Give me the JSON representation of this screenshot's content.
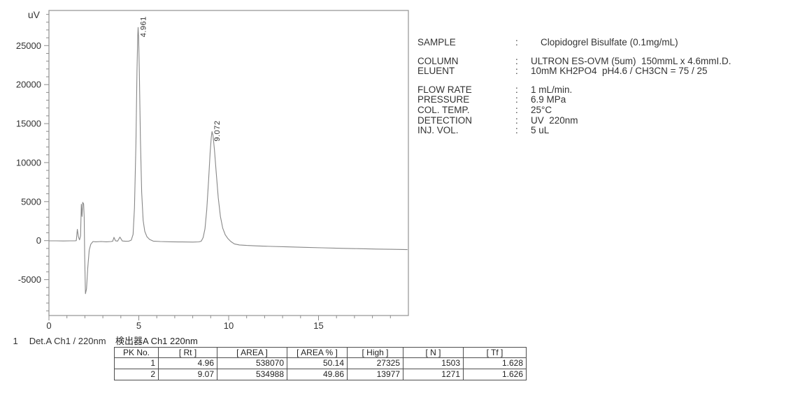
{
  "page": {
    "background": "#ffffff"
  },
  "chart": {
    "frame_color": "#9a9a9a",
    "tick_color": "#8c8c8c",
    "label_color": "#333333"
  },
  "chart_data": {
    "type": "line",
    "title": "",
    "xlabel": "",
    "ylabel": "uV",
    "x_unit": "min",
    "xlim": [
      0,
      20
    ],
    "ylim": [
      -9600,
      29500
    ],
    "x_major_ticks": [
      0,
      5,
      10,
      15
    ],
    "x_minor_step": 1,
    "y_major_ticks": [
      25000,
      20000,
      15000,
      10000,
      5000,
      0,
      -5000
    ],
    "y_minor_step": 1000,
    "grid": false,
    "legend": null,
    "trace_color": "#878787",
    "peaks": [
      {
        "rt": 4.961,
        "label": "4.961",
        "height_uv": 27325
      },
      {
        "rt": 9.072,
        "label": "9.072",
        "height_uv": 13977
      }
    ],
    "points": [
      [
        0,
        -30
      ],
      [
        0.4,
        -30
      ],
      [
        0.8,
        -40
      ],
      [
        1.2,
        -30
      ],
      [
        1.45,
        -30
      ],
      [
        1.52,
        0
      ],
      [
        1.58,
        1450
      ],
      [
        1.64,
        500
      ],
      [
        1.7,
        100
      ],
      [
        1.76,
        600
      ],
      [
        1.8,
        4650
      ],
      [
        1.84,
        3100
      ],
      [
        1.88,
        4900
      ],
      [
        1.93,
        4700
      ],
      [
        1.96,
        3000
      ],
      [
        1.99,
        -2000
      ],
      [
        2.03,
        -6800
      ],
      [
        2.09,
        -6200
      ],
      [
        2.16,
        -3500
      ],
      [
        2.24,
        -1200
      ],
      [
        2.33,
        -450
      ],
      [
        2.45,
        -120
      ],
      [
        2.6,
        -150
      ],
      [
        2.9,
        -120
      ],
      [
        3.2,
        -150
      ],
      [
        3.45,
        -120
      ],
      [
        3.55,
        -80
      ],
      [
        3.62,
        420
      ],
      [
        3.7,
        -20
      ],
      [
        3.82,
        -60
      ],
      [
        3.95,
        450
      ],
      [
        4.08,
        -40
      ],
      [
        4.25,
        -80
      ],
      [
        4.45,
        -60
      ],
      [
        4.58,
        60
      ],
      [
        4.68,
        800
      ],
      [
        4.76,
        4200
      ],
      [
        4.84,
        12500
      ],
      [
        4.9,
        21800
      ],
      [
        4.94,
        26300
      ],
      [
        4.961,
        27325
      ],
      [
        4.99,
        26200
      ],
      [
        5.03,
        21500
      ],
      [
        5.09,
        13000
      ],
      [
        5.16,
        6200
      ],
      [
        5.24,
        2600
      ],
      [
        5.33,
        1200
      ],
      [
        5.45,
        500
      ],
      [
        5.6,
        150
      ],
      [
        5.8,
        -60
      ],
      [
        6.2,
        -120
      ],
      [
        6.8,
        -150
      ],
      [
        7.4,
        -170
      ],
      [
        8.0,
        -190
      ],
      [
        8.35,
        -160
      ],
      [
        8.48,
        -60
      ],
      [
        8.58,
        400
      ],
      [
        8.68,
        1500
      ],
      [
        8.78,
        3900
      ],
      [
        8.88,
        7600
      ],
      [
        8.97,
        11300
      ],
      [
        9.03,
        13200
      ],
      [
        9.072,
        13977
      ],
      [
        9.13,
        13500
      ],
      [
        9.21,
        11600
      ],
      [
        9.31,
        8600
      ],
      [
        9.42,
        5500
      ],
      [
        9.54,
        3100
      ],
      [
        9.67,
        1600
      ],
      [
        9.81,
        750
      ],
      [
        9.96,
        250
      ],
      [
        10.12,
        -120
      ],
      [
        10.32,
        -420
      ],
      [
        10.6,
        -550
      ],
      [
        11.0,
        -620
      ],
      [
        11.6,
        -680
      ],
      [
        12.4,
        -740
      ],
      [
        13.2,
        -800
      ],
      [
        14.2,
        -860
      ],
      [
        15.2,
        -920
      ],
      [
        16.2,
        -980
      ],
      [
        17.2,
        -1030
      ],
      [
        18.2,
        -1080
      ],
      [
        19.2,
        -1120
      ],
      [
        19.95,
        -1150
      ]
    ]
  },
  "channel": {
    "index": "1",
    "label": "Det.A Ch1 / 220nm"
  },
  "conditions": {
    "rows": [
      {
        "label": "SAMPLE",
        "value": "Clopidogrel Bisulfate (0.1mg/mL)",
        "gap": false,
        "indent": true
      },
      {
        "label": "COLUMN",
        "value": "ULTRON ES-OVM (5um)  150mmL x 4.6mmI.D.",
        "gap": true
      },
      {
        "label": "ELUENT",
        "value": "10mM KH2PO4  pH4.6 / CH3CN = 75 / 25"
      },
      {
        "label": "FLOW RATE",
        "value": "1 mL/min.",
        "gap": true
      },
      {
        "label": "PRESSURE",
        "value": "6.9 MPa"
      },
      {
        "label": "COL. TEMP.",
        "value": "25°C"
      },
      {
        "label": "DETECTION",
        "value": "UV  220nm"
      },
      {
        "label": "INJ. VOL.",
        "value": "5 uL"
      }
    ]
  },
  "peak_table": {
    "title": "検出器A Ch1 220nm",
    "headers": [
      "PK No.",
      "[ Rt ]",
      "[ AREA ]",
      "[ AREA % ]",
      "[ High ]",
      "[ N ]",
      "[ Tf ]"
    ],
    "rows": [
      [
        "1",
        "4.96",
        "538070",
        "50.14",
        "27325",
        "1503",
        "1.628"
      ],
      [
        "2",
        "9.07",
        "534988",
        "49.86",
        "13977",
        "1271",
        "1.626"
      ]
    ]
  }
}
